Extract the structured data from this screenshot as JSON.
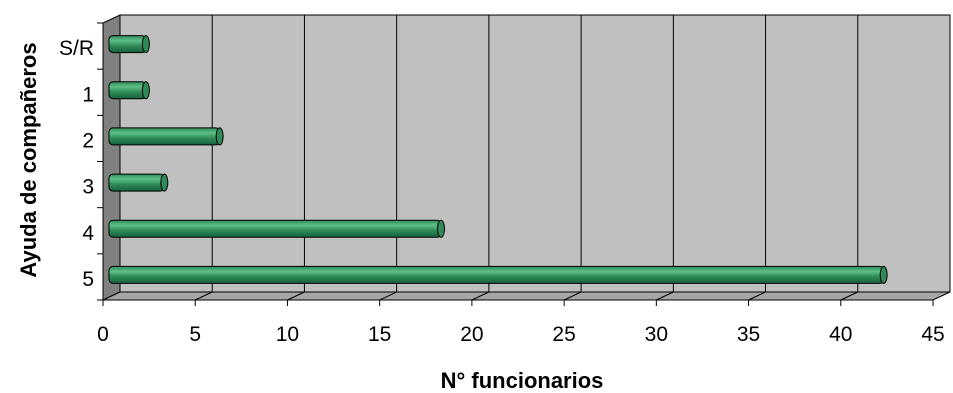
{
  "chart_data": {
    "type": "bar",
    "orientation": "horizontal",
    "style": "3d-cylinder",
    "categories": [
      "S/R",
      "1",
      "2",
      "3",
      "4",
      "5"
    ],
    "values": [
      2,
      2,
      6,
      3,
      18,
      42
    ],
    "xlabel": "N° funcionarios",
    "ylabel": "Ayuda de compañeros",
    "xlim": [
      0,
      45
    ],
    "x_ticks": [
      "0",
      "5",
      "10",
      "15",
      "20",
      "25",
      "30",
      "35",
      "40",
      "45"
    ],
    "grid": true,
    "legend": "none",
    "colors": {
      "bar": "#2e8b57",
      "bar_light": "#5fbf89",
      "bar_dark": "#16603a",
      "plot_background": "#c0c0c0",
      "side_wall": "#808080"
    }
  }
}
